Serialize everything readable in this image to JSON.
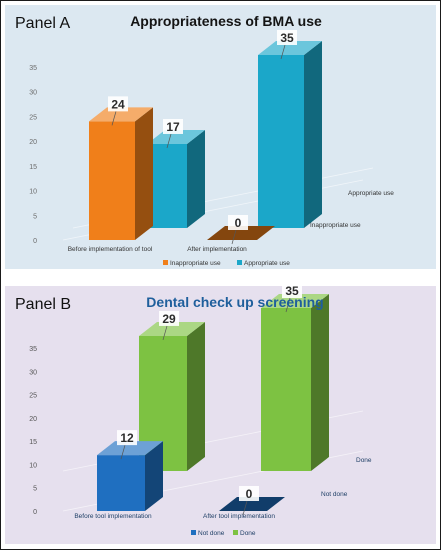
{
  "panels": [
    {
      "panel_label": "Panel A",
      "chart_title": "Appropriateness of BMA use",
      "chart_data": {
        "type": "bar",
        "title": "Appropriateness of BMA use",
        "categories": [
          "Before implementation of tool",
          "After implementation"
        ],
        "series": [
          {
            "name": "Inappropriate use",
            "values": [
              24,
              0
            ],
            "color": "#f07f1a"
          },
          {
            "name": "Appropriate use",
            "values": [
              17,
              35
            ],
            "color": "#1ba7c9"
          }
        ],
        "depth_labels": [
          "Inappropriate use",
          "Appropriate use"
        ],
        "yticks": [
          0,
          5,
          10,
          15,
          20,
          25,
          30,
          35
        ],
        "ylim": [
          0,
          35
        ],
        "legend": "bottom",
        "grid": false
      }
    },
    {
      "panel_label": "Panel B",
      "chart_title": "Dental check up screening",
      "chart_data": {
        "type": "bar",
        "title": "Dental check up screening",
        "categories": [
          "Before tool implementation",
          "After tool implementation"
        ],
        "series": [
          {
            "name": "Not done",
            "values": [
              12,
              0
            ],
            "color": "#1f6fc0"
          },
          {
            "name": "Done",
            "values": [
              29,
              35
            ],
            "color": "#7dc242"
          }
        ],
        "depth_labels": [
          "Not done",
          "Done"
        ],
        "yticks": [
          0,
          5,
          10,
          15,
          20,
          25,
          30,
          35
        ],
        "ylim": [
          0,
          35
        ],
        "legend": "bottom",
        "grid": false
      }
    }
  ]
}
